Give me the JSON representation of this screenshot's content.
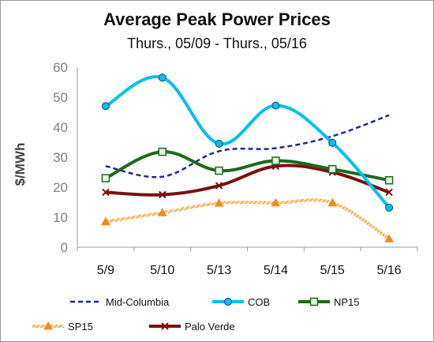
{
  "chart_data": {
    "type": "line",
    "title": "Average Peak Power Prices",
    "subtitle": "Thurs., 05/09 - Thurs., 05/16",
    "xlabel": "",
    "ylabel": "$/MWh",
    "categories": [
      "5/9",
      "5/10",
      "5/13",
      "5/14",
      "5/15",
      "5/16"
    ],
    "ylim": [
      0,
      60
    ],
    "yticks": [
      0,
      10,
      20,
      30,
      40,
      50,
      60
    ],
    "grid": false,
    "legend_position": "bottom",
    "series": [
      {
        "name": "Mid-Columbia",
        "values": [
          27,
          23.5,
          32,
          33,
          37,
          44
        ],
        "color": "#1f2a8a",
        "dash": true,
        "marker": "none"
      },
      {
        "name": "COB",
        "values": [
          47,
          56.5,
          34.5,
          47.2,
          34.8,
          13.2
        ],
        "color": "#00c0f0",
        "dash": false,
        "marker": "circle"
      },
      {
        "name": "NP15",
        "values": [
          23,
          31.8,
          25.5,
          28.8,
          26,
          22.3
        ],
        "color": "#1a6b1a",
        "dash": false,
        "marker": "square"
      },
      {
        "name": "SP15",
        "values": [
          8.5,
          11.5,
          14.7,
          14.8,
          14.8,
          2.8
        ],
        "color": "#f08a1c",
        "dash": false,
        "marker": "triangle",
        "hatched": true
      },
      {
        "name": "Palo Verde",
        "values": [
          18.3,
          17.5,
          20.5,
          27,
          25,
          18.3
        ],
        "color": "#7a1010",
        "dash": false,
        "marker": "x"
      }
    ]
  }
}
